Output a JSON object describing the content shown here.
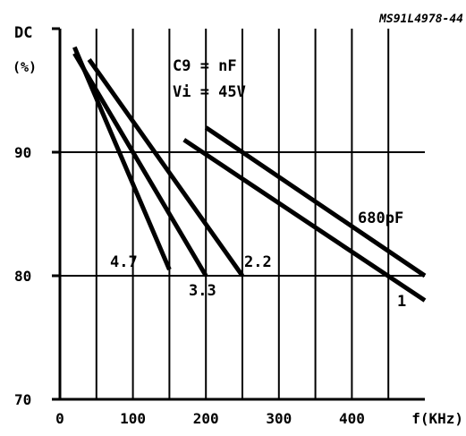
{
  "chart_data": {
    "type": "line",
    "figure_code": "MS91L4978-44",
    "ylabel": "DC",
    "ylabel_unit": "(%)",
    "xlabel": "f(KHz)",
    "xlim": [
      0,
      500
    ],
    "ylim": [
      70,
      100
    ],
    "x_ticks": [
      0,
      100,
      200,
      300,
      400
    ],
    "x_tick_labels": [
      "0",
      "100",
      "200",
      "300",
      "400"
    ],
    "y_ticks": [
      70,
      80,
      90
    ],
    "y_tick_labels": [
      "70",
      "80",
      "90"
    ],
    "x_grid": [
      50,
      100,
      150,
      200,
      250,
      300,
      350,
      400,
      450
    ],
    "y_grid": [
      70,
      80,
      90
    ],
    "grid": true,
    "annotation": [
      "C9 = nF",
      "Vi = 45V"
    ],
    "series": [
      {
        "name": "4.7",
        "x": [
          20,
          150
        ],
        "y": [
          98.5,
          80.5
        ]
      },
      {
        "name": "3.3",
        "x": [
          20,
          200
        ],
        "y": [
          98.0,
          80.0
        ]
      },
      {
        "name": "2.2",
        "x": [
          40,
          250
        ],
        "y": [
          97.5,
          80.0
        ]
      },
      {
        "name": "680pF",
        "x": [
          200,
          500
        ],
        "y": [
          92.0,
          80.0
        ]
      },
      {
        "name": "1",
        "x": [
          170,
          500
        ],
        "y": [
          91.0,
          78.0
        ]
      }
    ]
  }
}
